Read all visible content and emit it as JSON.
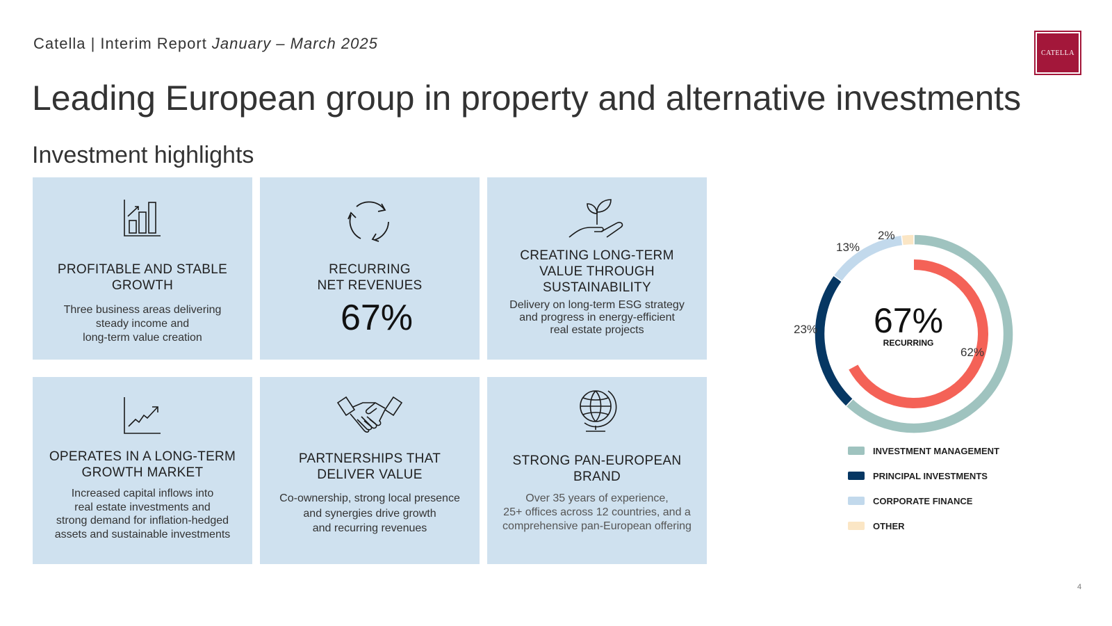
{
  "header": {
    "company": "Catella | Interim Report ",
    "period": "January – March 2025",
    "logo_text": "CATELLA"
  },
  "page_title": "Leading European group in property and alternative investments",
  "section_title": "Investment highlights",
  "cards": [
    {
      "icon": "bar-chart-growth-icon",
      "title_lines": [
        "PROFITABLE AND STABLE",
        "GROWTH"
      ],
      "text_lines": [
        "Three business areas delivering",
        "steady income and",
        "long-term value creation"
      ]
    },
    {
      "icon": "recurring-arrows-icon",
      "title_lines": [
        "RECURRING",
        "NET REVENUES"
      ],
      "big_value": "67%"
    },
    {
      "icon": "plant-hand-icon",
      "title_lines": [
        "CREATING LONG-TERM",
        "VALUE THROUGH",
        "SUSTAINABILITY"
      ],
      "text_lines": [
        "Delivery on long-term ESG strategy",
        "and progress in energy-efficient",
        "real estate projects"
      ]
    },
    {
      "icon": "line-chart-growth-icon",
      "title_lines": [
        "OPERATES IN A LONG-TERM",
        "GROWTH MARKET"
      ],
      "text_lines": [
        "Increased capital inflows into",
        "real estate investments and",
        "strong demand for inflation-hedged",
        "assets and sustainable investments"
      ]
    },
    {
      "icon": "handshake-icon",
      "title_lines": [
        "PARTNERSHIPS THAT",
        "DELIVER VALUE"
      ],
      "text_lines": [
        "Co-ownership, strong local presence",
        "and synergies drive growth",
        "and recurring revenues"
      ]
    },
    {
      "icon": "globe-icon",
      "title_lines": [
        "STRONG PAN-EUROPEAN",
        "BRAND"
      ],
      "text_lines": [
        "Over 35 years of experience,",
        "25+ offices across 12 countries, and a",
        "comprehensive pan-European offering"
      ]
    }
  ],
  "chart_data": {
    "type": "pie",
    "variant": "double-ring donut",
    "outer_ring": {
      "slices": [
        {
          "label": "INVESTMENT MANAGEMENT",
          "value": 62,
          "display": "62%",
          "color": "#9fc3bf"
        },
        {
          "label": "PRINCIPAL INVESTMENTS",
          "value": 23,
          "display": "23%",
          "color": "#063763"
        },
        {
          "label": "CORPORATE FINANCE",
          "value": 13,
          "display": "13%",
          "color": "#c2d9ec"
        },
        {
          "label": "OTHER",
          "value": 2,
          "display": "2%",
          "color": "#fbe6c5"
        }
      ]
    },
    "inner_ring": {
      "value": 67,
      "color": "#f46257"
    },
    "center_value": "67%",
    "center_label": "RECURRING",
    "legend_placement": "bottom"
  },
  "page_number": "4"
}
